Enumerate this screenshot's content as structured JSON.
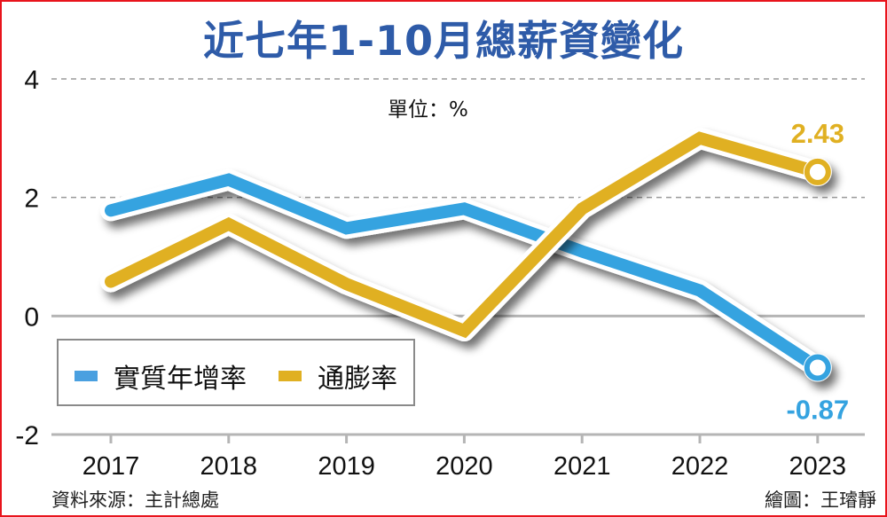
{
  "chart_data": {
    "type": "line",
    "title": "近七年1-10月總薪資變化",
    "unit_label": "單位：%",
    "xlabel": "",
    "ylabel": "",
    "categories": [
      "2017",
      "2018",
      "2019",
      "2020",
      "2021",
      "2022",
      "2023"
    ],
    "ylim": [
      -2,
      4
    ],
    "yticks": [
      4,
      2,
      0,
      -2
    ],
    "ytick_labels": [
      "4",
      "2",
      "0",
      "-2"
    ],
    "grid": "dashed horizontal at 2 and 4, solid baseline at 0 and -2",
    "legend_placement": "bottom-left",
    "series": [
      {
        "name": "實質年增率",
        "color": "#35a3e0",
        "values": [
          1.78,
          2.3,
          1.48,
          1.81,
          1.09,
          0.43,
          -0.87
        ],
        "end_label": "-0.87"
      },
      {
        "name": "通膨率",
        "color": "#e0b022",
        "values": [
          0.58,
          1.55,
          0.54,
          -0.25,
          1.81,
          3.0,
          2.43
        ],
        "end_label": "2.43"
      }
    ],
    "source": "資料來源：主計總處",
    "credit": "繪圖：王璿靜"
  }
}
